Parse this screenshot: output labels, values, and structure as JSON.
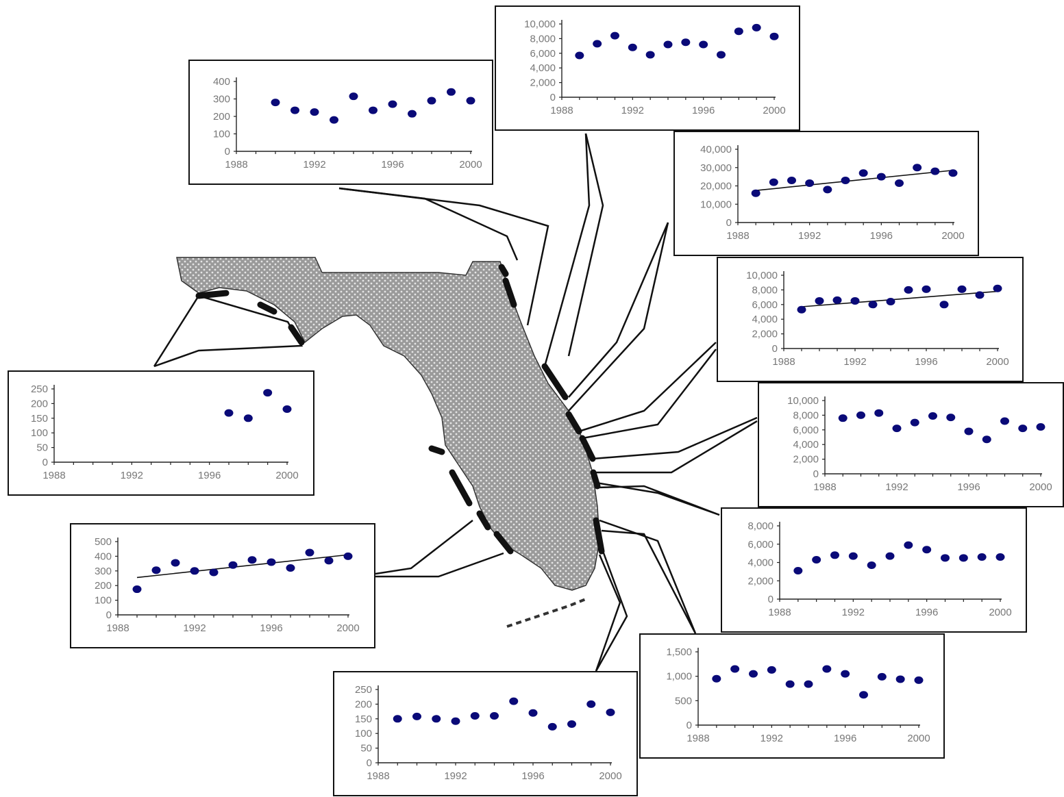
{
  "colors": {
    "point": "#0a0a78",
    "axis": "#222222",
    "land": "#a9a9a9",
    "coast": "#111111"
  },
  "chart_data": [
    {
      "type": "scatter",
      "id": "nw-panhandle",
      "xlim": [
        1988,
        2000
      ],
      "ylim": [
        0,
        400
      ],
      "xticks": [
        "1988",
        "1992",
        "1996",
        "2000"
      ],
      "yticks": [
        "400",
        "300",
        "200",
        "100",
        "0"
      ],
      "x": [
        1990,
        1991,
        1992,
        1993,
        1994,
        1995,
        1996,
        1997,
        1998,
        1999,
        2000
      ],
      "y": [
        280,
        235,
        225,
        180,
        315,
        235,
        270,
        215,
        290,
        340,
        290
      ],
      "trend": false
    },
    {
      "type": "scatter",
      "id": "ne-north",
      "xlim": [
        1988,
        2000
      ],
      "ylim": [
        0,
        10000
      ],
      "xticks": [
        "1988",
        "1992",
        "1996",
        "2000"
      ],
      "yticks": [
        "10,000",
        "8,000",
        "6,000",
        "4,000",
        "2,000",
        "0"
      ],
      "x": [
        1989,
        1990,
        1991,
        1992,
        1993,
        1994,
        1995,
        1996,
        1997,
        1998,
        1999,
        2000
      ],
      "y": [
        5700,
        7300,
        8400,
        6800,
        5800,
        7200,
        7500,
        7200,
        5800,
        9000,
        9500,
        8300
      ],
      "trend": false
    },
    {
      "type": "scatter",
      "id": "ne-2",
      "xlim": [
        1988,
        2000
      ],
      "ylim": [
        0,
        40000
      ],
      "xticks": [
        "1988",
        "1992",
        "1996",
        "2000"
      ],
      "yticks": [
        "40,000",
        "30,000",
        "20,000",
        "10,000",
        "0"
      ],
      "x": [
        1989,
        1990,
        1991,
        1992,
        1993,
        1994,
        1995,
        1996,
        1997,
        1998,
        1999,
        2000
      ],
      "y": [
        16000,
        22000,
        23000,
        21500,
        18000,
        23000,
        27000,
        25000,
        21500,
        30000,
        28000,
        27000
      ],
      "trend": [
        17500,
        28500
      ]
    },
    {
      "type": "scatter",
      "id": "e-3",
      "xlim": [
        1988,
        2000
      ],
      "ylim": [
        0,
        10000
      ],
      "xticks": [
        "1988",
        "1992",
        "1996",
        "2000"
      ],
      "yticks": [
        "10,000",
        "8,000",
        "6,000",
        "4,000",
        "2,000",
        "0"
      ],
      "x": [
        1989,
        1990,
        1991,
        1992,
        1993,
        1994,
        1995,
        1996,
        1997,
        1998,
        1999,
        2000
      ],
      "y": [
        5300,
        6500,
        6600,
        6500,
        6000,
        6400,
        8000,
        8100,
        6000,
        8100,
        7300,
        8200
      ],
      "trend": [
        5700,
        7800
      ]
    },
    {
      "type": "scatter",
      "id": "e-4",
      "xlim": [
        1988,
        2000
      ],
      "ylim": [
        0,
        10000
      ],
      "xticks": [
        "1988",
        "1992",
        "1996",
        "2000"
      ],
      "yticks": [
        "10,000",
        "8,000",
        "6,000",
        "4,000",
        "2,000",
        "0"
      ],
      "x": [
        1989,
        1990,
        1991,
        1992,
        1993,
        1994,
        1995,
        1996,
        1997,
        1998,
        1999,
        2000
      ],
      "y": [
        7600,
        8000,
        8300,
        6200,
        7000,
        7900,
        7700,
        5800,
        4700,
        7200,
        6200,
        6400
      ],
      "trend": false
    },
    {
      "type": "scatter",
      "id": "se-5",
      "xlim": [
        1988,
        2000
      ],
      "ylim": [
        0,
        8000
      ],
      "xticks": [
        "1988",
        "1992",
        "1996",
        "2000"
      ],
      "yticks": [
        "8,000",
        "6,000",
        "4,000",
        "2,000",
        "0"
      ],
      "x": [
        1989,
        1990,
        1991,
        1992,
        1993,
        1994,
        1995,
        1996,
        1997,
        1998,
        1999,
        2000
      ],
      "y": [
        3100,
        4300,
        4800,
        4700,
        3700,
        4700,
        5900,
        5400,
        4500,
        4500,
        4600,
        4600
      ],
      "trend": false
    },
    {
      "type": "scatter",
      "id": "se-6",
      "xlim": [
        1988,
        2000
      ],
      "ylim": [
        0,
        1500
      ],
      "xticks": [
        "1988",
        "1992",
        "1996",
        "2000"
      ],
      "yticks": [
        "1,500",
        "1,000",
        "500",
        "0"
      ],
      "x": [
        1989,
        1990,
        1991,
        1992,
        1993,
        1994,
        1995,
        1996,
        1997,
        1998,
        1999,
        2000
      ],
      "y": [
        950,
        1150,
        1050,
        1130,
        840,
        840,
        1150,
        1050,
        620,
        990,
        940,
        920
      ],
      "trend": false
    },
    {
      "type": "scatter",
      "id": "s-keys",
      "xlim": [
        1988,
        2000
      ],
      "ylim": [
        0,
        250
      ],
      "xticks": [
        "1988",
        "1992",
        "1996",
        "2000"
      ],
      "yticks": [
        "250",
        "200",
        "150",
        "100",
        "50",
        "0"
      ],
      "x": [
        1989,
        1990,
        1991,
        1992,
        1993,
        1994,
        1995,
        1996,
        1997,
        1998,
        1999,
        2000
      ],
      "y": [
        150,
        158,
        150,
        142,
        160,
        160,
        210,
        170,
        123,
        132,
        200,
        172
      ],
      "trend": false
    },
    {
      "type": "scatter",
      "id": "sw-gulf",
      "xlim": [
        1988,
        2000
      ],
      "ylim": [
        0,
        500
      ],
      "xticks": [
        "1988",
        "1992",
        "1996",
        "2000"
      ],
      "yticks": [
        "500",
        "400",
        "300",
        "200",
        "100",
        "0"
      ],
      "x": [
        1989,
        1990,
        1991,
        1992,
        1993,
        1994,
        1995,
        1996,
        1997,
        1998,
        1999,
        2000
      ],
      "y": [
        175,
        305,
        355,
        300,
        290,
        340,
        375,
        360,
        320,
        425,
        370,
        400
      ],
      "trend": [
        255,
        410
      ]
    },
    {
      "type": "scatter",
      "id": "w-bigbend",
      "xlim": [
        1988,
        2000
      ],
      "ylim": [
        0,
        250
      ],
      "xticks": [
        "1988",
        "1992",
        "1996",
        "2000"
      ],
      "yticks": [
        "250",
        "200",
        "150",
        "100",
        "50",
        "0"
      ],
      "x": [
        1997,
        1998,
        1999,
        2000
      ],
      "y": [
        168,
        150,
        237,
        181
      ],
      "trend": false
    }
  ]
}
